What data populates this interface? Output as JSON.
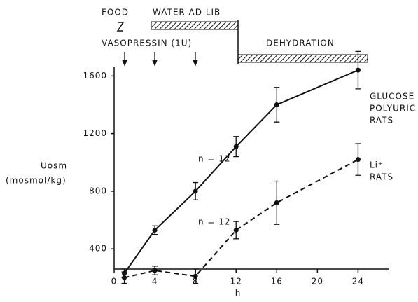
{
  "chart_data": {
    "type": "line",
    "xlabel": "h",
    "ylabel_main": "Uosm",
    "ylabel_unit": "(mosmol/kg)",
    "food_label": "FOOD",
    "water_label": "WATER AD LIB",
    "vasopressin_label": "VASOPRESSIN (1U)",
    "dehydration_label": "DEHYDRATION",
    "xlim": [
      0,
      27
    ],
    "xticks": [
      0,
      4,
      8,
      12,
      16,
      20,
      24
    ],
    "ylim": [
      260,
      1660
    ],
    "yticks": [
      400,
      800,
      1200,
      1600
    ],
    "series": [
      {
        "label_lines": [
          "GLUCOSE",
          "POLYURIC",
          "RATS"
        ],
        "color": "#111111",
        "dashed": false,
        "n_label": "n = 12",
        "x": [
          1,
          4,
          8,
          12,
          16,
          24
        ],
        "values": [
          230,
          530,
          800,
          1110,
          1400,
          1640
        ],
        "errors": [
          30,
          30,
          60,
          70,
          120,
          130
        ]
      },
      {
        "label_lines": [
          "Li⁺",
          "RATS"
        ],
        "color": "#111111",
        "dashed": true,
        "n_label": "n = 12",
        "x": [
          1,
          4,
          8,
          12,
          16,
          24
        ],
        "values": [
          200,
          250,
          210,
          530,
          720,
          1020
        ],
        "errors": [
          40,
          30,
          50,
          60,
          150,
          110
        ]
      }
    ]
  }
}
